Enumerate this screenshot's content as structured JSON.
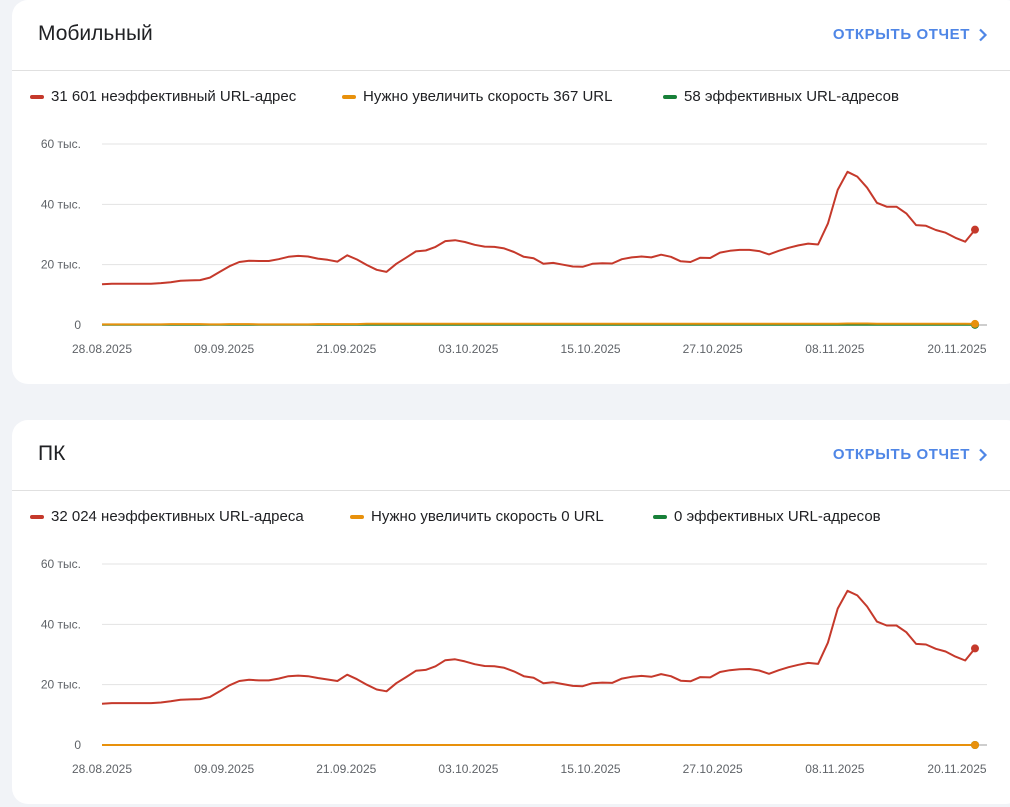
{
  "cards": [
    {
      "title": "Мобильный",
      "open_report": "ОТКРЫТЬ ОТЧЕТ",
      "legend": [
        {
          "label": "31 601 неэффективный URL-адрес",
          "color": "#c5392b"
        },
        {
          "label": "Нужно увеличить скорость 367 URL",
          "color": "#e8910c"
        },
        {
          "label": "58 эффективных URL-адресов",
          "color": "#188038"
        }
      ]
    },
    {
      "title": "ПК",
      "open_report": "ОТКРЫТЬ ОТЧЕТ",
      "legend": [
        {
          "label": "32 024 неэффективных URL-адреса",
          "color": "#c5392b"
        },
        {
          "label": "Нужно увеличить скорость 0 URL",
          "color": "#e8910c"
        },
        {
          "label": "0 эффективных URL-адресов",
          "color": "#188038"
        }
      ]
    }
  ],
  "chart_data": [
    {
      "type": "line",
      "yticks": [
        "0",
        "20 тыс.",
        "40 тыс.",
        "60 тыс."
      ],
      "ylim": [
        0,
        60000
      ],
      "x_ticklabels": [
        "28.08.2025",
        "09.09.2025",
        "21.09.2025",
        "03.10.2025",
        "15.10.2025",
        "27.10.2025",
        "08.11.2025",
        "20.11.2025"
      ],
      "grid": true,
      "series": [
        {
          "name": "31 601 неэффективный URL-адрес",
          "color": "#c5392b",
          "values": [
            13500,
            13700,
            13700,
            13700,
            13700,
            13700,
            13900,
            14200,
            14700,
            14800,
            14900,
            15700,
            17600,
            19500,
            20900,
            21300,
            21200,
            21200,
            21800,
            22600,
            22900,
            22700,
            22000,
            21600,
            21000,
            23100,
            21700,
            19900,
            18300,
            17600,
            20300,
            22300,
            24400,
            24700,
            25900,
            27800,
            28100,
            27500,
            26600,
            26000,
            25900,
            25400,
            24200,
            22600,
            22100,
            20300,
            20600,
            20000,
            19400,
            19300,
            20300,
            20500,
            20400,
            21800,
            22400,
            22700,
            22400,
            23300,
            22600,
            21100,
            20900,
            22300,
            22200,
            24000,
            24600,
            24900,
            24900,
            24500,
            23400,
            24600,
            25600,
            26400,
            27000,
            26700,
            33600,
            44800,
            50800,
            49200,
            45500,
            40500,
            39200,
            39200,
            37000,
            33100,
            32900,
            31500,
            30600,
            28900,
            27600,
            31601
          ]
        },
        {
          "name": "Нужно увеличить скорость 367 URL",
          "color": "#e8910c",
          "values": [
            200,
            200,
            200,
            200,
            200,
            200,
            200,
            300,
            300,
            300,
            300,
            200,
            200,
            300,
            300,
            300,
            200,
            200,
            200,
            200,
            200,
            200,
            300,
            300,
            300,
            300,
            300,
            400,
            400,
            400,
            400,
            400,
            400,
            400,
            400,
            400,
            400,
            400,
            400,
            400,
            400,
            400,
            400,
            400,
            400,
            400,
            400,
            400,
            400,
            400,
            400,
            400,
            400,
            400,
            400,
            400,
            400,
            400,
            400,
            400,
            400,
            400,
            400,
            400,
            400,
            400,
            400,
            400,
            400,
            400,
            400,
            400,
            400,
            400,
            400,
            400,
            500,
            500,
            500,
            400,
            400,
            400,
            400,
            400,
            400,
            400,
            400,
            400,
            400,
            367
          ]
        },
        {
          "name": "58 эффективных URL-адресов",
          "color": "#188038",
          "values": [
            60,
            60,
            60,
            60,
            60,
            60,
            60,
            60,
            60,
            60,
            60,
            60,
            60,
            60,
            60,
            60,
            60,
            60,
            60,
            60,
            60,
            60,
            60,
            60,
            60,
            60,
            60,
            60,
            60,
            60,
            60,
            60,
            60,
            60,
            60,
            60,
            60,
            60,
            60,
            60,
            60,
            60,
            60,
            60,
            60,
            60,
            60,
            60,
            60,
            60,
            60,
            60,
            60,
            60,
            60,
            60,
            60,
            60,
            60,
            60,
            60,
            60,
            60,
            60,
            60,
            60,
            60,
            60,
            60,
            60,
            60,
            60,
            60,
            60,
            60,
            60,
            60,
            60,
            60,
            60,
            60,
            60,
            60,
            60,
            60,
            60,
            60,
            60,
            60,
            58
          ]
        }
      ]
    },
    {
      "type": "line",
      "yticks": [
        "0",
        "20 тыс.",
        "40 тыс.",
        "60 тыс."
      ],
      "ylim": [
        0,
        60000
      ],
      "x_ticklabels": [
        "28.08.2025",
        "09.09.2025",
        "21.09.2025",
        "03.10.2025",
        "15.10.2025",
        "27.10.2025",
        "08.11.2025",
        "20.11.2025"
      ],
      "grid": true,
      "series": [
        {
          "name": "32 024 неэффективных URL-адреса",
          "color": "#c5392b",
          "values": [
            13700,
            13900,
            13900,
            13900,
            13900,
            13900,
            14100,
            14500,
            15000,
            15100,
            15200,
            15900,
            17800,
            19800,
            21200,
            21600,
            21400,
            21400,
            22000,
            22800,
            23000,
            22800,
            22200,
            21700,
            21200,
            23300,
            21800,
            20000,
            18400,
            17800,
            20500,
            22500,
            24600,
            24900,
            26100,
            28100,
            28400,
            27700,
            26800,
            26200,
            26100,
            25600,
            24400,
            22800,
            22300,
            20500,
            20800,
            20200,
            19600,
            19500,
            20500,
            20700,
            20600,
            22000,
            22600,
            22900,
            22600,
            23500,
            22800,
            21300,
            21100,
            22500,
            22400,
            24200,
            24800,
            25100,
            25200,
            24700,
            23600,
            24800,
            25800,
            26600,
            27200,
            26900,
            33900,
            45200,
            51100,
            49600,
            45900,
            40900,
            39600,
            39600,
            37400,
            33500,
            33300,
            31900,
            31000,
            29300,
            28000,
            32024
          ]
        },
        {
          "name": "Нужно увеличить скорость 0 URL",
          "color": "#e8910c",
          "values": [
            0,
            0,
            0,
            0,
            0,
            0,
            0,
            0,
            0,
            0,
            0,
            0,
            0,
            0,
            0,
            0,
            0,
            0,
            0,
            0,
            0,
            0,
            0,
            0,
            0,
            0,
            0,
            0,
            0,
            0,
            0,
            0,
            0,
            0,
            0,
            0,
            0,
            0,
            0,
            0,
            0,
            0,
            0,
            0,
            0,
            0,
            0,
            0,
            0,
            0,
            0,
            0,
            0,
            0,
            0,
            0,
            0,
            0,
            0,
            0,
            0,
            0,
            0,
            0,
            0,
            0,
            0,
            0,
            0,
            0,
            0,
            0,
            0,
            0,
            0,
            0,
            0,
            0,
            0,
            0,
            0,
            0,
            0,
            0,
            0,
            0,
            0,
            0,
            0,
            0
          ]
        },
        {
          "name": "0 эффективных URL-адресов",
          "color": "#188038",
          "values": [
            0,
            0,
            0,
            0,
            0,
            0,
            0,
            0,
            0,
            0,
            0,
            0,
            0,
            0,
            0,
            0,
            0,
            0,
            0,
            0,
            0,
            0,
            0,
            0,
            0,
            0,
            0,
            0,
            0,
            0,
            0,
            0,
            0,
            0,
            0,
            0,
            0,
            0,
            0,
            0,
            0,
            0,
            0,
            0,
            0,
            0,
            0,
            0,
            0,
            0,
            0,
            0,
            0,
            0,
            0,
            0,
            0,
            0,
            0,
            0,
            0,
            0,
            0,
            0,
            0,
            0,
            0,
            0,
            0,
            0,
            0,
            0,
            0,
            0,
            0,
            0,
            0,
            0,
            0,
            0,
            0,
            0,
            0,
            0,
            0,
            0,
            0,
            0,
            0,
            0
          ]
        }
      ]
    }
  ]
}
